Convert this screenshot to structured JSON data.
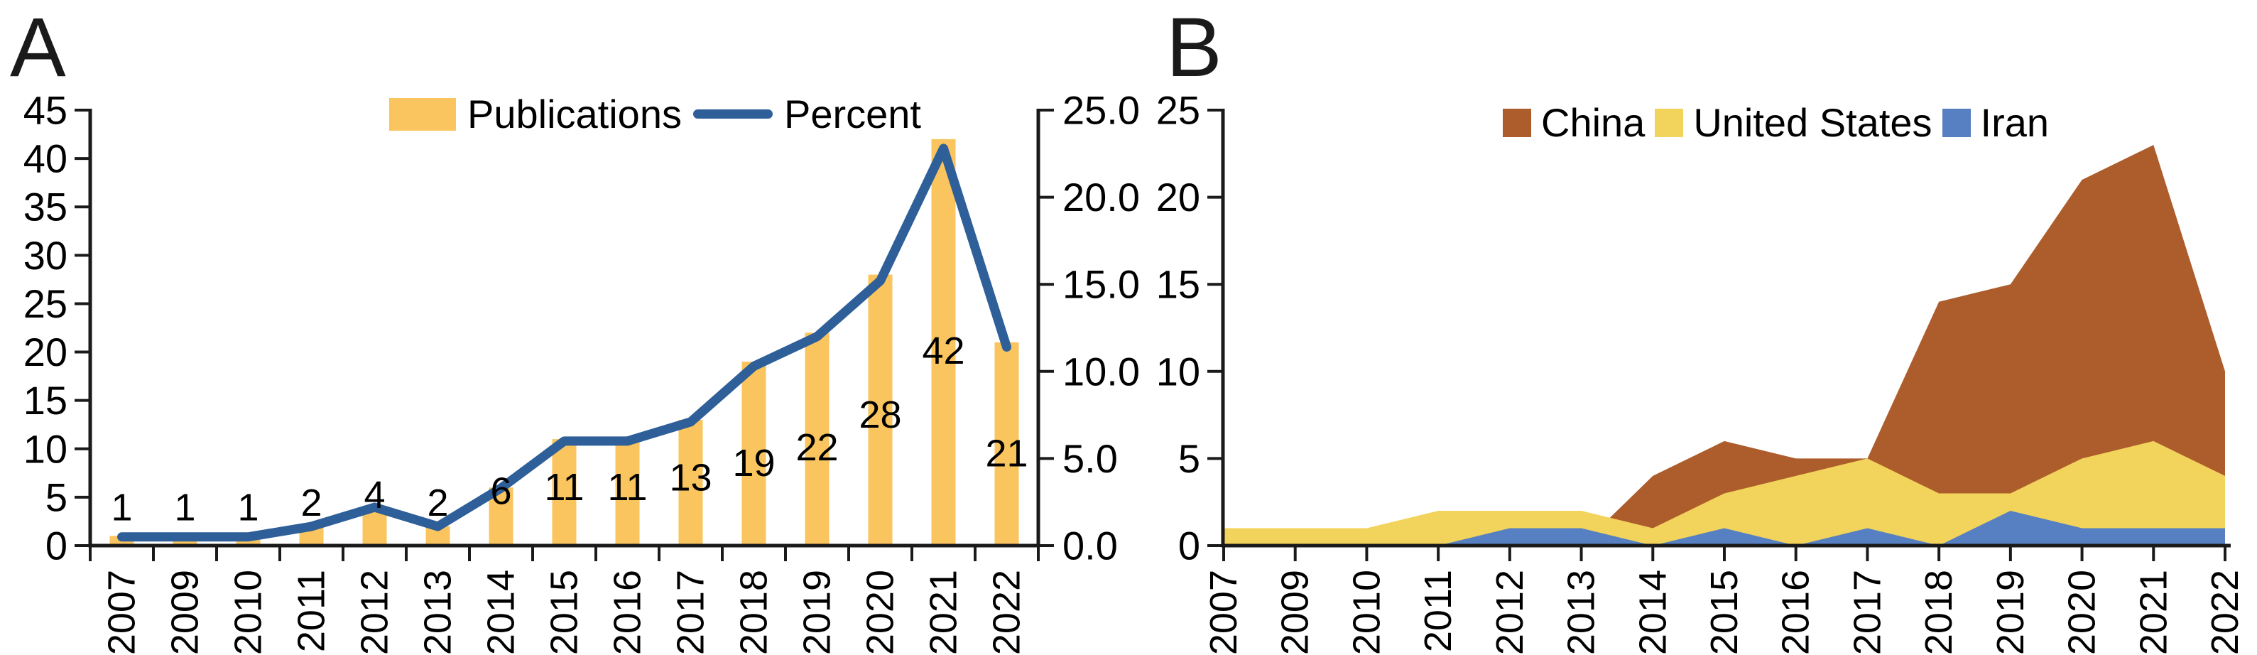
{
  "page": {
    "background": "#ffffff"
  },
  "panels": [
    {
      "label": "A",
      "legend": [
        {
          "label": "Publications",
          "color": "#FAC45E",
          "swatch": "bar-swatch"
        },
        {
          "label": "Percent",
          "color": "#2E5F99",
          "swatch": "line-swatch"
        }
      ]
    },
    {
      "label": "B",
      "legend": [
        {
          "label": "China",
          "color": "#AC5D2B",
          "swatch": "square-swatch"
        },
        {
          "label": "United States",
          "color": "#F2D35B",
          "swatch": "square-swatch"
        },
        {
          "label": "Iran",
          "color": "#5680C1",
          "swatch": "square-swatch"
        }
      ]
    }
  ],
  "chart_data": [
    {
      "type": "bar",
      "panel": "A",
      "title": "",
      "categories": [
        "2007",
        "2009",
        "2010",
        "2011",
        "2012",
        "2013",
        "2014",
        "2015",
        "2016",
        "2017",
        "2018",
        "2019",
        "2020",
        "2021",
        "2022"
      ],
      "series": [
        {
          "name": "Publications",
          "type": "bar",
          "axis": "left",
          "color": "#FAC45E",
          "values": [
            1,
            1,
            1,
            2,
            4,
            2,
            6,
            11,
            11,
            13,
            19,
            22,
            28,
            42,
            21
          ],
          "data_labels": [
            "1",
            "1",
            "1",
            "2",
            "4",
            "2",
            "6",
            "11",
            "11",
            "13",
            "19",
            "22",
            "28",
            "42",
            "21"
          ]
        },
        {
          "name": "Percent",
          "type": "line",
          "axis": "right",
          "color": "#2E5F99",
          "values": [
            0.5,
            0.5,
            0.5,
            1.1,
            2.2,
            1.1,
            3.3,
            6.0,
            6.0,
            7.1,
            10.3,
            12.0,
            15.2,
            22.8,
            11.4
          ]
        }
      ],
      "left_axis": {
        "label": "",
        "min": 0,
        "max": 45,
        "ticks": [
          "0",
          "5",
          "10",
          "15",
          "20",
          "25",
          "30",
          "35",
          "40",
          "45"
        ]
      },
      "right_axis": {
        "label": "",
        "min": 0,
        "max": 25,
        "ticks": [
          "0.0",
          "5.0",
          "10.0",
          "15.0",
          "20.0",
          "25.0"
        ]
      },
      "grid": false,
      "legend_position": "top-center"
    },
    {
      "type": "area",
      "panel": "B",
      "title": "",
      "overlapping": true,
      "paint_order": [
        "China",
        "United States",
        "Iran"
      ],
      "categories": [
        "2007",
        "2009",
        "2010",
        "2011",
        "2012",
        "2013",
        "2014",
        "2015",
        "2016",
        "2017",
        "2018",
        "2019",
        "2020",
        "2021",
        "2022"
      ],
      "series": [
        {
          "name": "China",
          "color": "#AC5D2B",
          "values": [
            0,
            0,
            0,
            0,
            0,
            0,
            4,
            6,
            5,
            5,
            14,
            15,
            21,
            23,
            10
          ]
        },
        {
          "name": "United States",
          "color": "#F2D35B",
          "values": [
            1,
            1,
            1,
            2,
            2,
            2,
            1,
            3,
            4,
            5,
            3,
            3,
            5,
            6,
            4
          ]
        },
        {
          "name": "Iran",
          "color": "#5680C1",
          "values": [
            0,
            0,
            0,
            0,
            1,
            1,
            0,
            1,
            0,
            1,
            0,
            2,
            1,
            1,
            1
          ]
        }
      ],
      "y_axis": {
        "label": "",
        "min": 0,
        "max": 25,
        "ticks": [
          "0",
          "5",
          "10",
          "15",
          "20",
          "25"
        ]
      },
      "grid": false,
      "legend_position": "top-center"
    }
  ]
}
